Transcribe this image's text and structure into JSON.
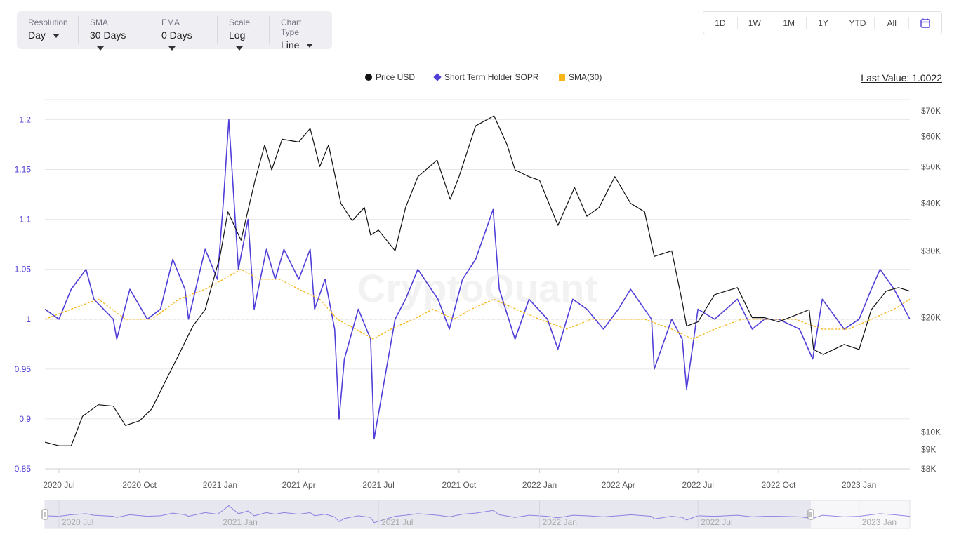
{
  "controls": {
    "resolution": {
      "label": "Resolution",
      "value": "Day"
    },
    "sma": {
      "label": "SMA",
      "value": "30 Days"
    },
    "ema": {
      "label": "EMA",
      "value": "0 Days"
    },
    "scale": {
      "label": "Scale",
      "value": "Log"
    },
    "chart_type": {
      "label": "Chart Type",
      "value": "Line"
    }
  },
  "ranges": [
    "1D",
    "1W",
    "1M",
    "1Y",
    "YTD",
    "All"
  ],
  "calendar_icon": "calendar-icon",
  "last_value": "Last Value: 1.0022",
  "watermark": "CryptoQuant",
  "colors": {
    "price": "#111111",
    "sopr": "#4f3fd8",
    "sma": "#f6b518",
    "grid": "#e6e6e6"
  },
  "chart_data": {
    "type": "line",
    "title": "",
    "legend": [
      "Price USD",
      "Short Term Holder SOPR",
      "SMA(30)"
    ],
    "legend_position": "top-center",
    "grid": true,
    "x_ticks": [
      "2020 Jul",
      "2020 Oct",
      "2021 Jan",
      "2021 Apr",
      "2021 Jul",
      "2021 Oct",
      "2022 Jan",
      "2022 Apr",
      "2022 Jul",
      "2022 Oct",
      "2023 Jan"
    ],
    "navigator_ticks": [
      "2020 Jul",
      "2021 Jan",
      "2021 Jul",
      "2022 Jan",
      "2022 Jul",
      "2023 Jan"
    ],
    "xlim": [
      "2020-06-15",
      "2023-02-28"
    ],
    "y_left": {
      "ticks": [
        "0.85",
        "0.9",
        "0.95",
        "1",
        "1.05",
        "1.1",
        "1.15",
        "1.2"
      ],
      "ylim": [
        0.85,
        1.22
      ]
    },
    "y_right": {
      "scale": "log",
      "ticks": [
        "$8K",
        "$9K",
        "$10K",
        "$20K",
        "$30K",
        "$40K",
        "$50K",
        "$60K",
        "$70K"
      ],
      "tick_values": [
        8000,
        9000,
        10000,
        20000,
        30000,
        40000,
        50000,
        60000,
        70000
      ],
      "ylim": [
        8000,
        75000
      ]
    },
    "series": [
      {
        "name": "Price USD",
        "axis": "right",
        "x": [
          "2020-06-15",
          "2020-07-01",
          "2020-07-15",
          "2020-07-28",
          "2020-08-15",
          "2020-09-01",
          "2020-09-15",
          "2020-10-01",
          "2020-10-15",
          "2020-11-01",
          "2020-11-15",
          "2020-12-01",
          "2020-12-15",
          "2021-01-01",
          "2021-01-10",
          "2021-01-25",
          "2021-02-10",
          "2021-02-21",
          "2021-03-01",
          "2021-03-13",
          "2021-04-01",
          "2021-04-14",
          "2021-04-25",
          "2021-05-05",
          "2021-05-19",
          "2021-06-01",
          "2021-06-15",
          "2021-06-22",
          "2021-07-01",
          "2021-07-20",
          "2021-08-01",
          "2021-08-15",
          "2021-09-06",
          "2021-09-21",
          "2021-10-01",
          "2021-10-20",
          "2021-11-10",
          "2021-11-25",
          "2021-12-04",
          "2021-12-20",
          "2022-01-01",
          "2022-01-22",
          "2022-02-10",
          "2022-02-24",
          "2022-03-10",
          "2022-03-28",
          "2022-04-15",
          "2022-05-01",
          "2022-05-12",
          "2022-06-01",
          "2022-06-13",
          "2022-06-18",
          "2022-07-01",
          "2022-07-20",
          "2022-08-15",
          "2022-09-01",
          "2022-09-15",
          "2022-10-01",
          "2022-10-25",
          "2022-11-05",
          "2022-11-10",
          "2022-11-21",
          "2022-12-15",
          "2023-01-01",
          "2023-01-15",
          "2023-02-01",
          "2023-02-15",
          "2023-02-28"
        ],
        "values": [
          9400,
          9200,
          9200,
          11000,
          11800,
          11700,
          10400,
          10700,
          11500,
          13800,
          16000,
          19000,
          21000,
          29000,
          38000,
          32000,
          46000,
          57000,
          49000,
          59000,
          58000,
          63000,
          50000,
          57000,
          40000,
          36000,
          39000,
          33000,
          34000,
          30000,
          39000,
          47000,
          52000,
          41000,
          47000,
          64000,
          68000,
          57000,
          49000,
          47000,
          46000,
          35000,
          44000,
          37000,
          39000,
          47000,
          40000,
          38000,
          29000,
          30000,
          22000,
          19000,
          19500,
          23000,
          24000,
          20000,
          20000,
          19500,
          20500,
          21000,
          16500,
          16000,
          17000,
          16500,
          21000,
          23500,
          24000,
          23500
        ]
      },
      {
        "name": "Short Term Holder SOPR",
        "axis": "left",
        "x": [
          "2020-06-15",
          "2020-07-01",
          "2020-07-15",
          "2020-08-01",
          "2020-08-10",
          "2020-09-01",
          "2020-09-05",
          "2020-09-20",
          "2020-10-10",
          "2020-10-25",
          "2020-11-08",
          "2020-11-22",
          "2020-11-26",
          "2020-12-15",
          "2020-12-29",
          "2021-01-05",
          "2021-01-11",
          "2021-01-22",
          "2021-02-02",
          "2021-02-09",
          "2021-02-23",
          "2021-03-05",
          "2021-03-15",
          "2021-04-01",
          "2021-04-14",
          "2021-04-19",
          "2021-05-01",
          "2021-05-12",
          "2021-05-17",
          "2021-05-23",
          "2021-06-08",
          "2021-06-22",
          "2021-06-26",
          "2021-07-20",
          "2021-08-01",
          "2021-08-15",
          "2021-09-07",
          "2021-09-20",
          "2021-10-05",
          "2021-10-20",
          "2021-11-09",
          "2021-11-16",
          "2021-12-04",
          "2021-12-20",
          "2022-01-10",
          "2022-01-22",
          "2022-02-08",
          "2022-02-24",
          "2022-03-15",
          "2022-04-01",
          "2022-04-15",
          "2022-05-09",
          "2022-05-12",
          "2022-06-01",
          "2022-06-13",
          "2022-06-18",
          "2022-07-01",
          "2022-07-20",
          "2022-08-15",
          "2022-09-01",
          "2022-09-15",
          "2022-10-01",
          "2022-10-25",
          "2022-11-09",
          "2022-11-20",
          "2022-12-15",
          "2023-01-01",
          "2023-01-15",
          "2023-01-25",
          "2023-02-10",
          "2023-02-28"
        ],
        "values": [
          1.01,
          1.0,
          1.03,
          1.05,
          1.02,
          1.0,
          0.98,
          1.03,
          1.0,
          1.01,
          1.06,
          1.03,
          1.0,
          1.07,
          1.04,
          1.12,
          1.2,
          1.05,
          1.1,
          1.01,
          1.07,
          1.04,
          1.07,
          1.04,
          1.07,
          1.01,
          1.04,
          0.99,
          0.9,
          0.96,
          1.01,
          0.98,
          0.88,
          1.0,
          1.02,
          1.05,
          1.02,
          0.99,
          1.04,
          1.06,
          1.11,
          1.03,
          0.98,
          1.02,
          1.0,
          0.97,
          1.02,
          1.01,
          0.99,
          1.01,
          1.03,
          1.0,
          0.95,
          1.0,
          0.98,
          0.93,
          1.01,
          1.0,
          1.02,
          0.99,
          1.0,
          1.0,
          0.99,
          0.96,
          1.02,
          0.99,
          1.0,
          1.03,
          1.05,
          1.03,
          1.0
        ]
      },
      {
        "name": "SMA(30)",
        "axis": "left",
        "x": [
          "2020-06-15",
          "2020-07-15",
          "2020-08-15",
          "2020-09-15",
          "2020-10-15",
          "2020-11-15",
          "2020-12-15",
          "2021-01-05",
          "2021-01-25",
          "2021-02-15",
          "2021-03-10",
          "2021-04-01",
          "2021-04-25",
          "2021-05-15",
          "2021-06-05",
          "2021-06-25",
          "2021-07-15",
          "2021-08-10",
          "2021-09-01",
          "2021-09-25",
          "2021-10-15",
          "2021-11-10",
          "2021-12-05",
          "2022-01-01",
          "2022-02-01",
          "2022-03-01",
          "2022-04-01",
          "2022-05-01",
          "2022-06-01",
          "2022-06-25",
          "2022-07-20",
          "2022-08-20",
          "2022-09-20",
          "2022-10-20",
          "2022-11-20",
          "2022-12-20",
          "2023-01-15",
          "2023-02-10",
          "2023-02-28"
        ],
        "values": [
          1.0,
          1.01,
          1.02,
          1.0,
          1.0,
          1.02,
          1.03,
          1.04,
          1.05,
          1.04,
          1.04,
          1.03,
          1.02,
          1.0,
          0.99,
          0.98,
          0.99,
          1.0,
          1.01,
          1.0,
          1.01,
          1.02,
          1.01,
          1.0,
          0.99,
          1.0,
          1.0,
          1.0,
          0.99,
          0.98,
          0.99,
          1.0,
          1.0,
          1.0,
          0.99,
          0.99,
          1.0,
          1.01,
          1.02
        ]
      }
    ]
  }
}
